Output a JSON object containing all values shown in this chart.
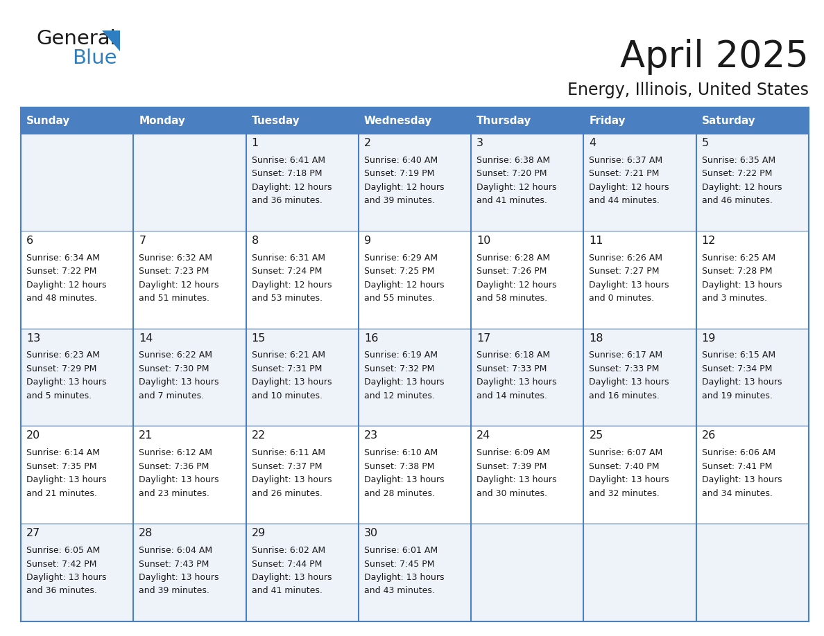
{
  "title": "April 2025",
  "subtitle": "Energy, Illinois, United States",
  "header_bg": "#4a7fc1",
  "header_text": "#ffffff",
  "cell_bg_light": "#eef2f9",
  "cell_bg_white": "#ffffff",
  "border_color_outer": "#4a7fc1",
  "border_color_inner": "#9ab5d9",
  "day_names": [
    "Sunday",
    "Monday",
    "Tuesday",
    "Wednesday",
    "Thursday",
    "Friday",
    "Saturday"
  ],
  "days": [
    {
      "date": 1,
      "col": 2,
      "row": 0,
      "sunrise": "6:41 AM",
      "sunset": "7:18 PM",
      "daylight_line1": "Daylight: 12 hours",
      "daylight_line2": "and 36 minutes."
    },
    {
      "date": 2,
      "col": 3,
      "row": 0,
      "sunrise": "6:40 AM",
      "sunset": "7:19 PM",
      "daylight_line1": "Daylight: 12 hours",
      "daylight_line2": "and 39 minutes."
    },
    {
      "date": 3,
      "col": 4,
      "row": 0,
      "sunrise": "6:38 AM",
      "sunset": "7:20 PM",
      "daylight_line1": "Daylight: 12 hours",
      "daylight_line2": "and 41 minutes."
    },
    {
      "date": 4,
      "col": 5,
      "row": 0,
      "sunrise": "6:37 AM",
      "sunset": "7:21 PM",
      "daylight_line1": "Daylight: 12 hours",
      "daylight_line2": "and 44 minutes."
    },
    {
      "date": 5,
      "col": 6,
      "row": 0,
      "sunrise": "6:35 AM",
      "sunset": "7:22 PM",
      "daylight_line1": "Daylight: 12 hours",
      "daylight_line2": "and 46 minutes."
    },
    {
      "date": 6,
      "col": 0,
      "row": 1,
      "sunrise": "6:34 AM",
      "sunset": "7:22 PM",
      "daylight_line1": "Daylight: 12 hours",
      "daylight_line2": "and 48 minutes."
    },
    {
      "date": 7,
      "col": 1,
      "row": 1,
      "sunrise": "6:32 AM",
      "sunset": "7:23 PM",
      "daylight_line1": "Daylight: 12 hours",
      "daylight_line2": "and 51 minutes."
    },
    {
      "date": 8,
      "col": 2,
      "row": 1,
      "sunrise": "6:31 AM",
      "sunset": "7:24 PM",
      "daylight_line1": "Daylight: 12 hours",
      "daylight_line2": "and 53 minutes."
    },
    {
      "date": 9,
      "col": 3,
      "row": 1,
      "sunrise": "6:29 AM",
      "sunset": "7:25 PM",
      "daylight_line1": "Daylight: 12 hours",
      "daylight_line2": "and 55 minutes."
    },
    {
      "date": 10,
      "col": 4,
      "row": 1,
      "sunrise": "6:28 AM",
      "sunset": "7:26 PM",
      "daylight_line1": "Daylight: 12 hours",
      "daylight_line2": "and 58 minutes."
    },
    {
      "date": 11,
      "col": 5,
      "row": 1,
      "sunrise": "6:26 AM",
      "sunset": "7:27 PM",
      "daylight_line1": "Daylight: 13 hours",
      "daylight_line2": "and 0 minutes."
    },
    {
      "date": 12,
      "col": 6,
      "row": 1,
      "sunrise": "6:25 AM",
      "sunset": "7:28 PM",
      "daylight_line1": "Daylight: 13 hours",
      "daylight_line2": "and 3 minutes."
    },
    {
      "date": 13,
      "col": 0,
      "row": 2,
      "sunrise": "6:23 AM",
      "sunset": "7:29 PM",
      "daylight_line1": "Daylight: 13 hours",
      "daylight_line2": "and 5 minutes."
    },
    {
      "date": 14,
      "col": 1,
      "row": 2,
      "sunrise": "6:22 AM",
      "sunset": "7:30 PM",
      "daylight_line1": "Daylight: 13 hours",
      "daylight_line2": "and 7 minutes."
    },
    {
      "date": 15,
      "col": 2,
      "row": 2,
      "sunrise": "6:21 AM",
      "sunset": "7:31 PM",
      "daylight_line1": "Daylight: 13 hours",
      "daylight_line2": "and 10 minutes."
    },
    {
      "date": 16,
      "col": 3,
      "row": 2,
      "sunrise": "6:19 AM",
      "sunset": "7:32 PM",
      "daylight_line1": "Daylight: 13 hours",
      "daylight_line2": "and 12 minutes."
    },
    {
      "date": 17,
      "col": 4,
      "row": 2,
      "sunrise": "6:18 AM",
      "sunset": "7:33 PM",
      "daylight_line1": "Daylight: 13 hours",
      "daylight_line2": "and 14 minutes."
    },
    {
      "date": 18,
      "col": 5,
      "row": 2,
      "sunrise": "6:17 AM",
      "sunset": "7:33 PM",
      "daylight_line1": "Daylight: 13 hours",
      "daylight_line2": "and 16 minutes."
    },
    {
      "date": 19,
      "col": 6,
      "row": 2,
      "sunrise": "6:15 AM",
      "sunset": "7:34 PM",
      "daylight_line1": "Daylight: 13 hours",
      "daylight_line2": "and 19 minutes."
    },
    {
      "date": 20,
      "col": 0,
      "row": 3,
      "sunrise": "6:14 AM",
      "sunset": "7:35 PM",
      "daylight_line1": "Daylight: 13 hours",
      "daylight_line2": "and 21 minutes."
    },
    {
      "date": 21,
      "col": 1,
      "row": 3,
      "sunrise": "6:12 AM",
      "sunset": "7:36 PM",
      "daylight_line1": "Daylight: 13 hours",
      "daylight_line2": "and 23 minutes."
    },
    {
      "date": 22,
      "col": 2,
      "row": 3,
      "sunrise": "6:11 AM",
      "sunset": "7:37 PM",
      "daylight_line1": "Daylight: 13 hours",
      "daylight_line2": "and 26 minutes."
    },
    {
      "date": 23,
      "col": 3,
      "row": 3,
      "sunrise": "6:10 AM",
      "sunset": "7:38 PM",
      "daylight_line1": "Daylight: 13 hours",
      "daylight_line2": "and 28 minutes."
    },
    {
      "date": 24,
      "col": 4,
      "row": 3,
      "sunrise": "6:09 AM",
      "sunset": "7:39 PM",
      "daylight_line1": "Daylight: 13 hours",
      "daylight_line2": "and 30 minutes."
    },
    {
      "date": 25,
      "col": 5,
      "row": 3,
      "sunrise": "6:07 AM",
      "sunset": "7:40 PM",
      "daylight_line1": "Daylight: 13 hours",
      "daylight_line2": "and 32 minutes."
    },
    {
      "date": 26,
      "col": 6,
      "row": 3,
      "sunrise": "6:06 AM",
      "sunset": "7:41 PM",
      "daylight_line1": "Daylight: 13 hours",
      "daylight_line2": "and 34 minutes."
    },
    {
      "date": 27,
      "col": 0,
      "row": 4,
      "sunrise": "6:05 AM",
      "sunset": "7:42 PM",
      "daylight_line1": "Daylight: 13 hours",
      "daylight_line2": "and 36 minutes."
    },
    {
      "date": 28,
      "col": 1,
      "row": 4,
      "sunrise": "6:04 AM",
      "sunset": "7:43 PM",
      "daylight_line1": "Daylight: 13 hours",
      "daylight_line2": "and 39 minutes."
    },
    {
      "date": 29,
      "col": 2,
      "row": 4,
      "sunrise": "6:02 AM",
      "sunset": "7:44 PM",
      "daylight_line1": "Daylight: 13 hours",
      "daylight_line2": "and 41 minutes."
    },
    {
      "date": 30,
      "col": 3,
      "row": 4,
      "sunrise": "6:01 AM",
      "sunset": "7:45 PM",
      "daylight_line1": "Daylight: 13 hours",
      "daylight_line2": "and 43 minutes."
    }
  ],
  "logo_general_color": "#1a1a1a",
  "logo_blue_color": "#2e7fc1",
  "logo_triangle_color": "#2e7fc1",
  "title_color": "#1a1a1a",
  "text_color": "#1a1a1a"
}
